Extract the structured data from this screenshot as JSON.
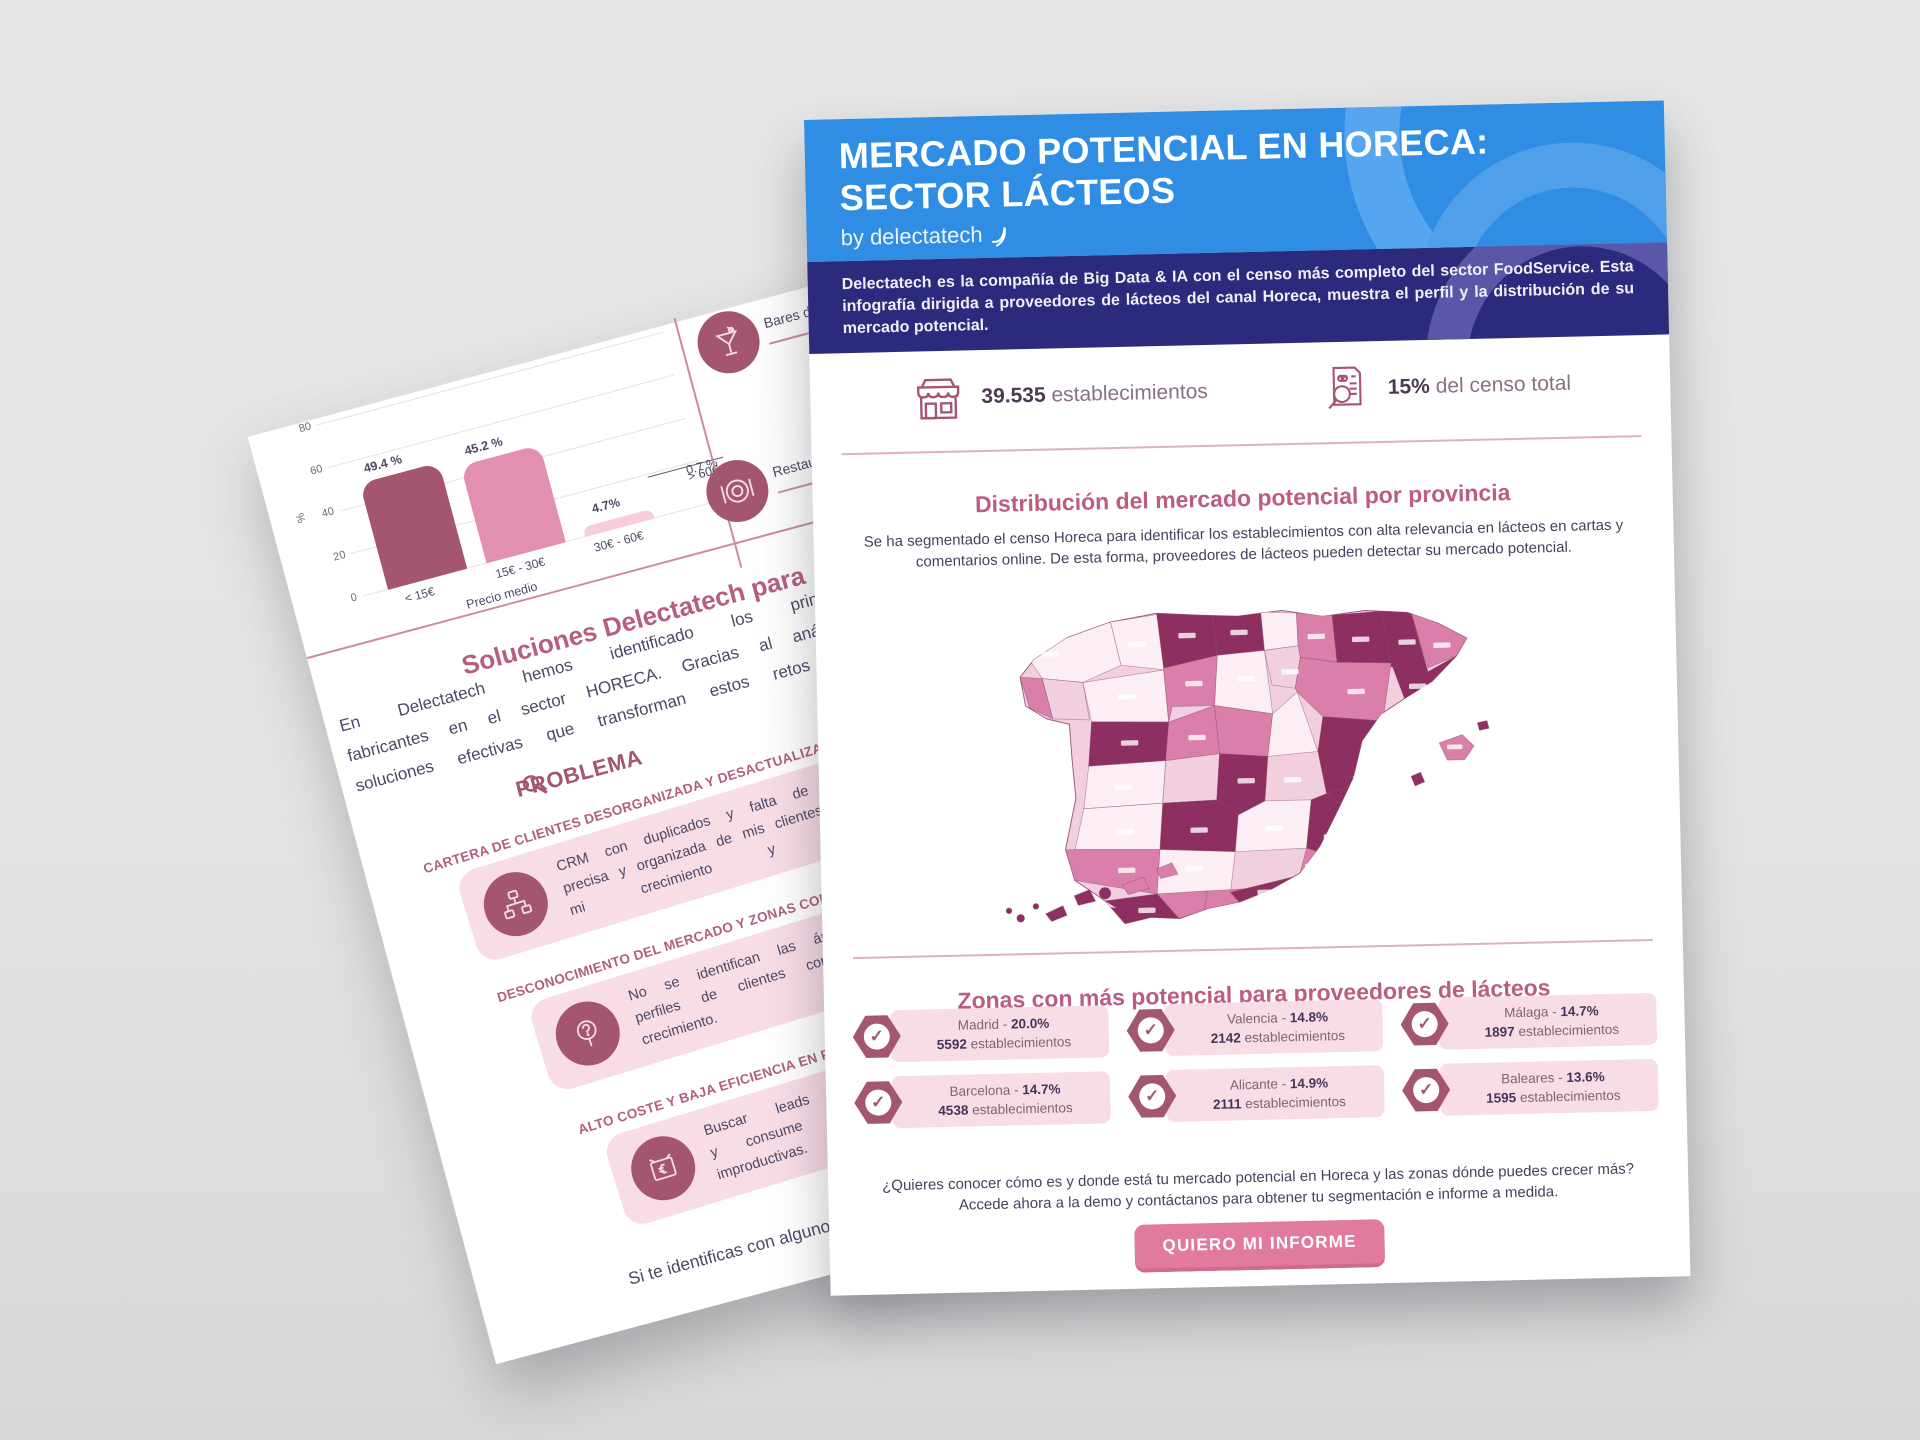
{
  "colors": {
    "header_blue": "#2f8ee4",
    "band_indigo": "#2b2a7d",
    "rose_heading": "#bc5c82",
    "mauve": "#a4566f",
    "pill_pink": "#f8dce6",
    "button_pink": "#e07b9d",
    "map_palette": [
      "#8e2f62",
      "#d97fa9",
      "#f2cfdf",
      "#fbeff5"
    ]
  },
  "back_page": {
    "chart": {
      "type": "bar",
      "title": "",
      "xlabel": "Precio medio",
      "ylabel": "%",
      "ylim": [
        0,
        80
      ],
      "yticks": [
        80,
        60,
        40,
        20,
        0
      ],
      "categories": [
        "< 15€",
        "15€ - 30€",
        "30€ - 60€",
        "> 60€"
      ],
      "values": [
        49.4,
        45.2,
        4.7,
        0.7
      ],
      "value_labels": [
        "49.4 %",
        "45.2 %",
        "4.7%",
        "0.7 %"
      ]
    },
    "categories_column": [
      {
        "icon": "cocktail-icon",
        "label": "Bares de copas"
      },
      {
        "icon": "plate-icon",
        "label": "Restaurantes"
      }
    ],
    "solutions_heading": "Soluciones Delectatech para",
    "solutions_lines": [
      "En Delectatech hemos identificado los principales",
      "fabricantes en el sector HORECA. Gracias al análisis d",
      "soluciones efectivas que transforman estos retos en o"
    ],
    "problema_heading": "PROBLEMA",
    "problems": [
      {
        "icon": "crm-network-icon",
        "title": "CARTERA DE CLIENTES DESORGANIZADA Y DESACTUALIZADA",
        "lines": [
          "CRM con duplicados y falta de información",
          "precisa y organizada de mis clientes, que limita",
          "mi crecimiento y seguimiento."
        ]
      },
      {
        "icon": "question-pin-icon",
        "title": "DESCONOCIMIENTO DEL MERCADO Y ZONAS CON POTENC",
        "lines": [
          "No se identifican las áreas geográficas re",
          "perfiles de clientes con mayor oportunida",
          "crecimiento."
        ]
      },
      {
        "icon": "cost-money-icon",
        "title": "ALTO COSTE Y BAJA EFICIENCIA EN PROSPEC",
        "lines": [
          "Buscar leads cualificados en restauraci",
          "y consume mucho tiempo, con muc",
          "improductivas."
        ]
      }
    ],
    "footer_line": "Si te identificas con alguno de es"
  },
  "front_page": {
    "header": {
      "title_line1": "MERCADO POTENCIAL EN HORECA:",
      "title_line2": "SECTOR LÁCTEOS",
      "byline": "by delectatech"
    },
    "intro": "Delectatech es la compañía de Big Data & IA con el censo más completo del sector FoodService. Esta infografía dirigida a proveedores de lácteos del canal Horeca, muestra el perfil y la distribución de su mercado potencial.",
    "stats": [
      {
        "icon": "storefront-icon",
        "value": "39.535",
        "label": "establecimientos"
      },
      {
        "icon": "report-magnifier-icon",
        "value": "15%",
        "label": "del censo total"
      }
    ],
    "section1": {
      "heading": "Distribución del mercado potencial por provincia",
      "paragraph": "Se ha segmentado el censo Horeca para identificar los establecimientos con alta relevancia en lácteos en cartas y comentarios online. De esta forma, proveedores de lácteos pueden detectar su mercado potencial."
    },
    "section2": {
      "heading": "Zonas con más potencial para proveedores de lácteos",
      "zones": [
        {
          "name_label": "Madrid - ",
          "share": "20.0%",
          "count": "5592",
          "unit": " establecimientos"
        },
        {
          "name_label": "Valencia - ",
          "share": "14.8%",
          "count": "2142",
          "unit": " establecimientos"
        },
        {
          "name_label": "Málaga - ",
          "share": "14.7%",
          "count": "1897",
          "unit": " establecimientos"
        },
        {
          "name_label": "Barcelona - ",
          "share": "14.7%",
          "count": "4538",
          "unit": " establecimientos"
        },
        {
          "name_label": "Alicante - ",
          "share": "14.9%",
          "count": "2111",
          "unit": " establecimientos"
        },
        {
          "name_label": "Baleares - ",
          "share": "13.6%",
          "count": "1595",
          "unit": " establecimientos"
        }
      ]
    },
    "cta": {
      "paragraph": "¿Quieres conocer cómo es y donde está tu mercado potencial en Horeca y las zonas dónde puedes crecer más? Accede ahora a la demo y contáctanos para obtener tu segmentación e informe a medida.",
      "button": "QUIERO MI INFORME"
    }
  }
}
